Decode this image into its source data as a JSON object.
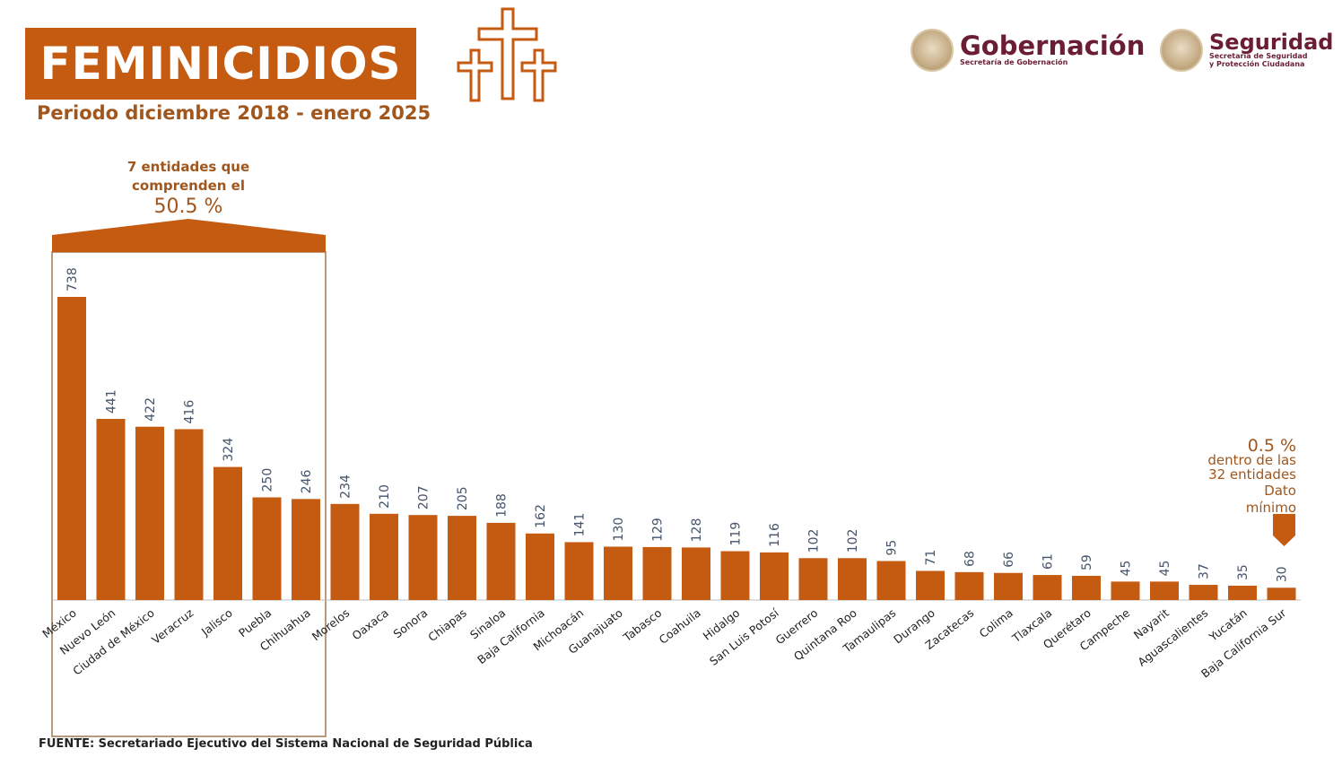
{
  "header": {
    "title": "FEMINICIDIOS",
    "subtitle": "Periodo diciembre 2018 - enero 2025"
  },
  "logos": {
    "gobernacion": {
      "name": "Gobernación",
      "sub": "Secretaría de Gobernación"
    },
    "seguridad": {
      "name": "Seguridad",
      "sub_line1": "Secretaría de Seguridad",
      "sub_line2": "y Protección Ciudadana"
    }
  },
  "annotations": {
    "group_line1": "7 entidades que",
    "group_line2": "comprenden el",
    "group_pct": "50.5 %",
    "min_pct": "0.5 %",
    "min_line1": "dentro de las",
    "min_line2": "32 entidades",
    "min_line3": "Dato",
    "min_line4": "mínimo"
  },
  "footer": {
    "source": "FUENTE: Secretariado Ejecutivo del Sistema Nacional de Seguridad Pública"
  },
  "colors": {
    "bar": "#c55a11",
    "accent_text": "#a0561c",
    "value_text": "#44546a",
    "frame": "#a07850",
    "logo_text": "#6b1e33"
  },
  "chart_data": {
    "type": "bar",
    "title": "FEMINICIDIOS",
    "subtitle": "Periodo diciembre 2018 - enero 2025",
    "xlabel": "",
    "ylabel": "",
    "grid": false,
    "categories": [
      "México",
      "Nuevo León",
      "Ciudad de México",
      "Veracruz",
      "Jalisco",
      "Puebla",
      "Chihuahua",
      "Morelos",
      "Oaxaca",
      "Sonora",
      "Chiapas",
      "Sinaloa",
      "Baja California",
      "Michoacán",
      "Guanajuato",
      "Tabasco",
      "Coahuila",
      "Hidalgo",
      "San Luis Potosí",
      "Guerrero",
      "Quintana Roo",
      "Tamaulipas",
      "Durango",
      "Zacatecas",
      "Colima",
      "Tlaxcala",
      "Querétaro",
      "Campeche",
      "Nayarit",
      "Aguascalientes",
      "Yucatán",
      "Baja California Sur"
    ],
    "values": [
      738,
      441,
      422,
      416,
      324,
      250,
      246,
      234,
      210,
      207,
      205,
      188,
      162,
      141,
      130,
      129,
      128,
      119,
      116,
      102,
      102,
      95,
      71,
      68,
      66,
      61,
      59,
      45,
      45,
      37,
      35,
      30
    ],
    "ylim": [
      0,
      738
    ]
  }
}
